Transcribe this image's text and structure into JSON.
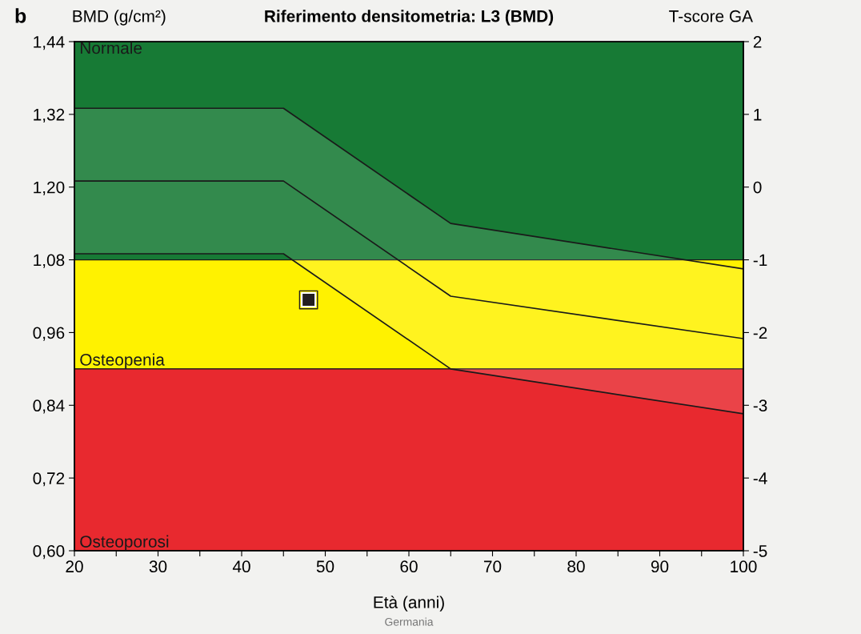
{
  "chart_data": {
    "type": "line",
    "title": "Riferimento densitometria: L3 (BMD)",
    "xlabel": "Età (anni)",
    "ylabel": "BMD (g/cm²)",
    "y2label": "T-score GA",
    "annotations": [
      "b",
      "Germania"
    ],
    "xlim": [
      20,
      100
    ],
    "xticks": [
      20,
      {
        "value": 25,
        "label": null
      },
      30,
      {
        "value": 35,
        "label": null
      },
      40,
      {
        "value": 45,
        "label": null
      },
      50,
      {
        "value": 55,
        "label": null
      },
      60,
      {
        "value": 65,
        "label": null
      },
      70,
      {
        "value": 75,
        "label": null
      },
      80,
      {
        "value": 85,
        "label": null
      },
      90,
      {
        "value": 95,
        "label": null
      },
      100
    ],
    "ylim": [
      0.6,
      1.44
    ],
    "yticks": [
      {
        "value": 0.6,
        "label": "0,60"
      },
      {
        "value": 0.72,
        "label": "0,72"
      },
      {
        "value": 0.84,
        "label": "0,84"
      },
      {
        "value": 0.96,
        "label": "0,96"
      },
      {
        "value": 1.08,
        "label": "1,08"
      },
      {
        "value": 1.2,
        "label": "1,20"
      },
      {
        "value": 1.32,
        "label": "1,32"
      },
      {
        "value": 1.44,
        "label": "1,44"
      }
    ],
    "y2lim": [
      -5,
      2
    ],
    "y2ticks": [
      -5,
      -4,
      -3,
      -2,
      -1,
      0,
      1,
      2
    ],
    "bands": [
      {
        "axis": "y",
        "from": 1.08,
        "to": 1.44,
        "label": "Normale",
        "color": "#177a35"
      },
      {
        "axis": "y",
        "from": 0.9,
        "to": 1.08,
        "label": "Osteopenia",
        "color": "#fff200"
      },
      {
        "axis": "y",
        "from": 0.6,
        "to": 0.9,
        "label": "Osteoporosi",
        "color": "#e8292f"
      }
    ],
    "series": [
      {
        "color": "#1a1a1a",
        "x": [
          20,
          45,
          65,
          100
        ],
        "values": [
          1.21,
          1.21,
          1.02,
          0.95
        ],
        "lower": [
          1.09,
          1.09,
          0.9,
          0.826
        ],
        "upper": [
          1.33,
          1.33,
          1.14,
          1.065
        ]
      },
      {
        "type": "scatter",
        "color": "#231f20",
        "x": [
          48
        ],
        "values": [
          1.014
        ],
        "marker": "square"
      }
    ],
    "grid": false
  }
}
